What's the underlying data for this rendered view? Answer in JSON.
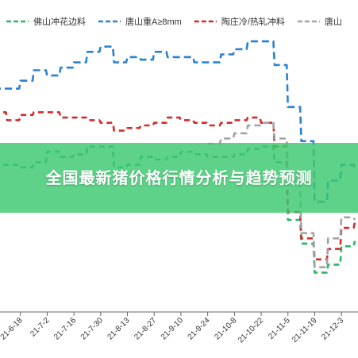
{
  "banner": {
    "title": "全国最新猪价格行情分析与趋势预测"
  },
  "chart_data": {
    "type": "line",
    "title": "",
    "xlabel": "",
    "ylabel": "",
    "grid": false,
    "legend_position": "top",
    "x_ticks": [
      "21-6-18",
      "21-7-2",
      "21-7-16",
      "21-7-30",
      "21-8-13",
      "21-8-27",
      "21-9-10",
      "21-9-24",
      "21-10-8",
      "21-10-22",
      "21-11-5",
      "21-11-19",
      "21-12-3"
    ],
    "x_start": "2021-06-04",
    "x_end": "2021-12-10",
    "ylim": [
      0,
      100
    ],
    "series": [
      {
        "name": "佛山冲花边料",
        "color": "#2ab56a",
        "dash": "7,5",
        "points": [
          [
            "2021-06-04",
            56
          ],
          [
            "2021-06-11",
            56
          ],
          [
            "2021-06-18",
            55
          ],
          [
            "2021-06-25",
            57
          ],
          [
            "2021-07-02",
            61
          ],
          [
            "2021-07-09",
            59
          ],
          [
            "2021-07-16",
            60
          ],
          [
            "2021-07-23",
            63
          ],
          [
            "2021-07-30",
            63
          ],
          [
            "2021-08-06",
            55
          ],
          [
            "2021-08-13",
            56
          ],
          [
            "2021-08-20",
            59
          ],
          [
            "2021-08-27",
            58
          ],
          [
            "2021-09-03",
            59
          ],
          [
            "2021-09-10",
            61
          ],
          [
            "2021-09-17",
            60
          ],
          [
            "2021-09-24",
            59
          ],
          [
            "2021-10-01",
            59
          ],
          [
            "2021-10-08",
            60
          ],
          [
            "2021-10-15",
            62
          ],
          [
            "2021-10-22",
            63
          ],
          [
            "2021-10-29",
            57
          ],
          [
            "2021-11-05",
            35
          ],
          [
            "2021-11-12",
            26
          ],
          [
            "2021-11-19",
            15
          ],
          [
            "2021-11-26",
            18
          ],
          [
            "2021-12-03",
            25
          ],
          [
            "2021-12-10",
            27
          ]
        ]
      },
      {
        "name": "唐山重A≥8mm",
        "color": "#2a82d2",
        "dash": "9,5",
        "points": [
          [
            "2021-06-04",
            85
          ],
          [
            "2021-06-11",
            85
          ],
          [
            "2021-06-18",
            88
          ],
          [
            "2021-06-25",
            92
          ],
          [
            "2021-07-02",
            90
          ],
          [
            "2021-07-09",
            93
          ],
          [
            "2021-07-16",
            95
          ],
          [
            "2021-07-23",
            99
          ],
          [
            "2021-07-30",
            101
          ],
          [
            "2021-08-06",
            95
          ],
          [
            "2021-08-13",
            97
          ],
          [
            "2021-08-20",
            96
          ],
          [
            "2021-08-27",
            99
          ],
          [
            "2021-09-03",
            97
          ],
          [
            "2021-09-10",
            97
          ],
          [
            "2021-09-17",
            95
          ],
          [
            "2021-09-24",
            95
          ],
          [
            "2021-10-01",
            98
          ],
          [
            "2021-10-08",
            100
          ],
          [
            "2021-10-15",
            103
          ],
          [
            "2021-10-22",
            103
          ],
          [
            "2021-10-29",
            94
          ],
          [
            "2021-11-05",
            78
          ],
          [
            "2021-11-12",
            65
          ],
          [
            "2021-11-19",
            42
          ],
          [
            "2021-11-26",
            50
          ],
          [
            "2021-12-03",
            56
          ],
          [
            "2021-12-10",
            55
          ]
        ]
      },
      {
        "name": "陶庄冷/热轧冲料",
        "color": "#d62a2a",
        "dash": "7,5",
        "points": [
          [
            "2021-06-04",
            76
          ],
          [
            "2021-06-11",
            73
          ],
          [
            "2021-06-18",
            75
          ],
          [
            "2021-06-25",
            76
          ],
          [
            "2021-07-02",
            76
          ],
          [
            "2021-07-09",
            74
          ],
          [
            "2021-07-16",
            74
          ],
          [
            "2021-07-23",
            73
          ],
          [
            "2021-07-30",
            72
          ],
          [
            "2021-08-06",
            69
          ],
          [
            "2021-08-13",
            70
          ],
          [
            "2021-08-20",
            71
          ],
          [
            "2021-08-27",
            72
          ],
          [
            "2021-09-03",
            74
          ],
          [
            "2021-09-10",
            73
          ],
          [
            "2021-09-17",
            72
          ],
          [
            "2021-09-24",
            71
          ],
          [
            "2021-10-01",
            72
          ],
          [
            "2021-10-08",
            73
          ],
          [
            "2021-10-15",
            74
          ],
          [
            "2021-10-22",
            72
          ],
          [
            "2021-10-29",
            63
          ],
          [
            "2021-11-05",
            38
          ],
          [
            "2021-11-12",
            28
          ],
          [
            "2021-11-19",
            20
          ],
          [
            "2021-11-26",
            24
          ],
          [
            "2021-12-03",
            32
          ],
          [
            "2021-12-10",
            34
          ]
        ]
      },
      {
        "name": "唐山",
        "color": "#a3a3a3",
        "dash": "8,5",
        "points": [
          [
            "2021-09-24",
            64
          ],
          [
            "2021-10-01",
            66
          ],
          [
            "2021-10-08",
            68
          ],
          [
            "2021-10-15",
            71
          ],
          [
            "2021-10-22",
            72
          ],
          [
            "2021-10-29",
            66
          ],
          [
            "2021-11-05",
            50
          ],
          [
            "2021-11-12",
            30
          ],
          [
            "2021-11-19",
            17
          ],
          [
            "2021-11-26",
            28
          ],
          [
            "2021-12-03",
            36
          ],
          [
            "2021-12-10",
            35
          ]
        ]
      }
    ]
  }
}
